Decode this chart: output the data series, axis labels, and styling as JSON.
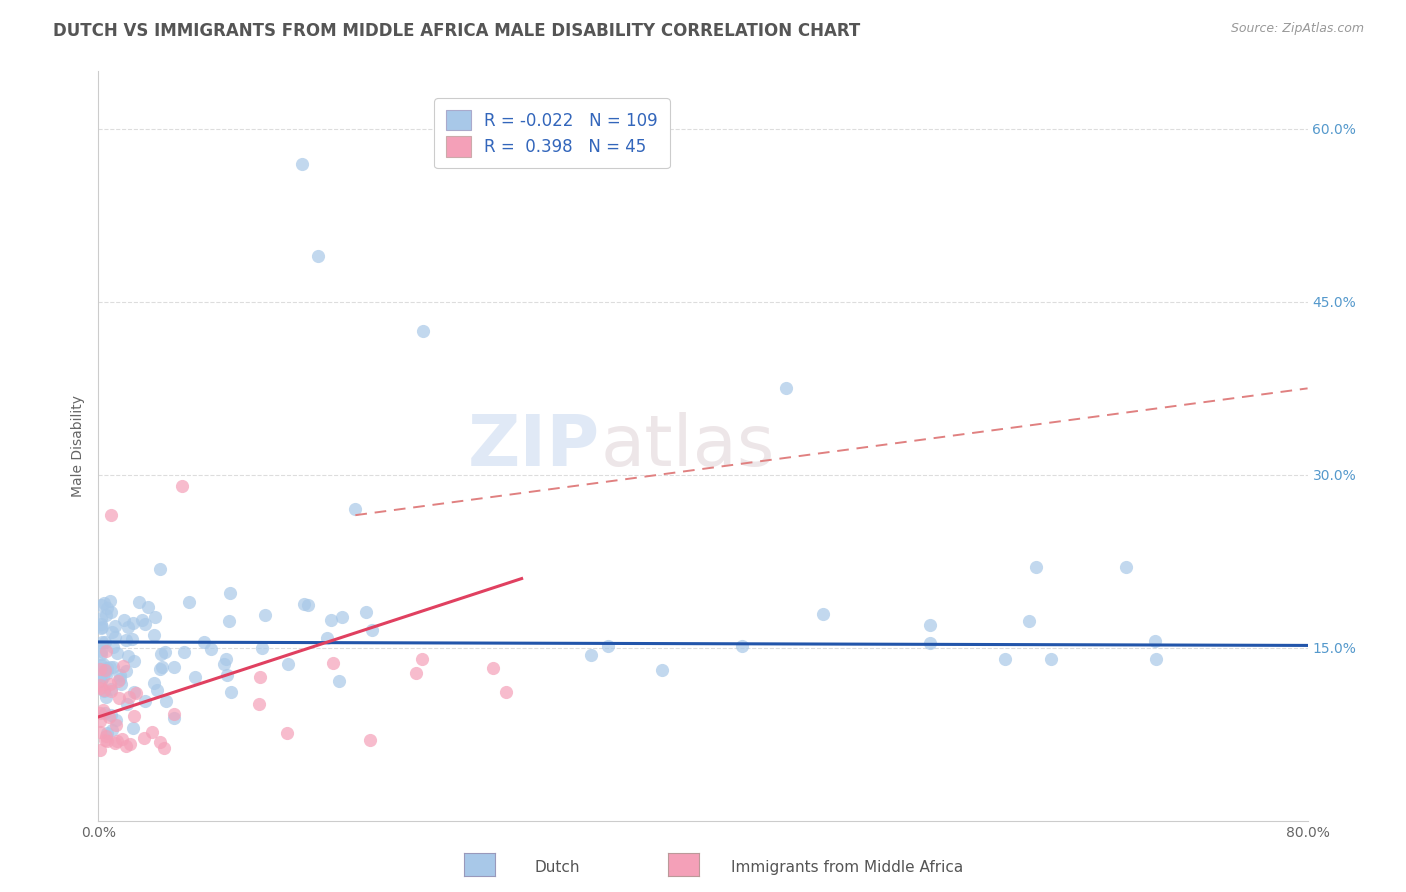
{
  "title": "DUTCH VS IMMIGRANTS FROM MIDDLE AFRICA MALE DISABILITY CORRELATION CHART",
  "source": "Source: ZipAtlas.com",
  "ylabel": "Male Disability",
  "watermark_zip": "ZIP",
  "watermark_atlas": "atlas",
  "legend": {
    "dutch_R": -0.022,
    "dutch_N": 109,
    "imm_R": 0.398,
    "imm_N": 45
  },
  "scatter_color_dutch": "#a8c8e8",
  "scatter_color_imm": "#f4a0b8",
  "line_color_dutch": "#2255aa",
  "line_color_imm": "#e04060",
  "dashed_line_color": "#e08080",
  "bg_color": "#ffffff",
  "grid_color": "#dddddd",
  "xlim": [
    0.0,
    0.8
  ],
  "ylim": [
    0.0,
    0.65
  ],
  "yticks": [
    0.15,
    0.3,
    0.45,
    0.6
  ],
  "ytick_labels": [
    "15.0%",
    "30.0%",
    "45.0%",
    "60.0%"
  ],
  "title_fontsize": 12,
  "axis_label_fontsize": 10,
  "tick_fontsize": 10,
  "source_fontsize": 9,
  "dutch_line_y": [
    0.155,
    0.152
  ],
  "imm_line_x": [
    0.0,
    0.28
  ],
  "imm_line_y": [
    0.09,
    0.21
  ],
  "dashed_line_x": [
    0.17,
    0.8
  ],
  "dashed_line_y": [
    0.265,
    0.375
  ]
}
